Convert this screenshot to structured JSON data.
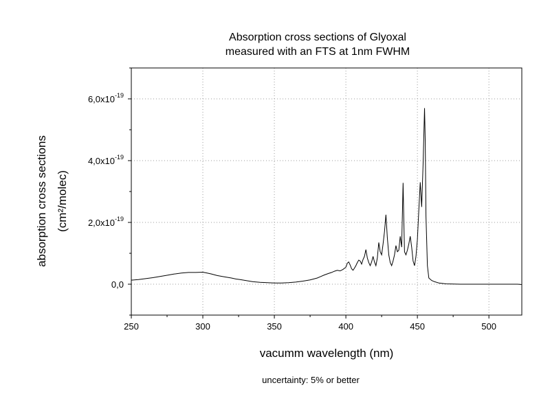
{
  "chart_data": {
    "type": "line",
    "title": "Absorption cross sections of Glyoxal",
    "subtitle": "measured with an FTS at 1nm FWHM",
    "xlabel": "vacumm wavelength (nm)",
    "ylabel": "absorption cross sections",
    "ylabel_unit": "(cm²/molec)",
    "note": "uncertainty: 5% or better",
    "xlim": [
      250,
      523
    ],
    "ylim": [
      -1e-19,
      7e-19
    ],
    "x_ticks": [
      250,
      300,
      350,
      400,
      450,
      500
    ],
    "x_tick_labels": [
      "250",
      "300",
      "350",
      "400",
      "450",
      "500"
    ],
    "y_ticks": [
      0,
      2e-19,
      4e-19,
      6e-19
    ],
    "y_tick_labels": [
      {
        "mantissa": "0,0",
        "exp": ""
      },
      {
        "mantissa": "2,0x10",
        "exp": "-19"
      },
      {
        "mantissa": "4,0x10",
        "exp": "-19"
      },
      {
        "mantissa": "6,0x10",
        "exp": "-19"
      }
    ],
    "grid": true,
    "line_color": "#000000",
    "grid_color": "#9a9a9a",
    "series": [
      {
        "x": [
          250,
          255,
          260,
          265,
          270,
          275,
          280,
          285,
          290,
          295,
          300,
          303,
          306,
          310,
          315,
          320,
          323,
          326,
          330,
          335,
          340,
          345,
          350,
          355,
          360,
          365,
          370,
          375,
          380,
          382,
          385,
          388,
          390,
          392,
          394,
          396,
          398,
          400,
          401,
          402,
          403,
          404,
          405,
          406,
          407,
          408,
          409,
          410,
          411,
          412,
          413,
          414,
          415,
          416,
          417,
          418,
          419,
          420,
          421,
          422,
          423,
          424,
          425,
          426,
          427,
          428,
          429,
          430,
          431,
          432,
          433,
          434,
          435,
          436,
          437,
          438,
          439,
          440,
          440.5,
          441,
          442,
          443,
          444,
          445,
          446,
          447,
          448,
          449,
          450,
          451,
          452,
          453,
          454,
          455,
          455.5,
          456,
          457,
          458,
          460,
          462,
          465,
          470,
          480,
          490,
          500,
          510,
          520,
          523
        ],
        "y": [
          1.3e-20,
          1.5e-20,
          1.8e-20,
          2.1e-20,
          2.5e-20,
          2.9e-20,
          3.3e-20,
          3.6e-20,
          3.8e-20,
          3.8e-20,
          3.9e-20,
          3.6e-20,
          3.3e-20,
          2.8e-20,
          2.4e-20,
          2e-20,
          1.7e-20,
          1.5e-20,
          1.2e-20,
          8e-21,
          6e-21,
          5e-21,
          4e-21,
          4e-21,
          5e-21,
          7e-21,
          1e-20,
          1.4e-20,
          2e-20,
          2.4e-20,
          3e-20,
          3.5e-20,
          3.8e-20,
          4.2e-20,
          4.5e-20,
          4.3e-20,
          4.8e-20,
          5.5e-20,
          6.8e-20,
          7.2e-20,
          6.2e-20,
          5e-20,
          4.5e-20,
          5.2e-20,
          6e-20,
          7e-20,
          7.8e-20,
          7.5e-20,
          6.5e-20,
          8e-20,
          9e-20,
          1.12e-19,
          8.5e-20,
          7e-20,
          6e-20,
          7.2e-20,
          9e-20,
          7.2e-20,
          6e-20,
          8.5e-20,
          1.35e-19,
          1.05e-19,
          9.5e-20,
          1.3e-19,
          1.7e-19,
          2.25e-19,
          1.5e-19,
          9.5e-20,
          7e-20,
          6e-20,
          7.5e-20,
          9.5e-20,
          1.25e-19,
          1.05e-19,
          1.1e-19,
          1.55e-19,
          1.2e-19,
          3.28e-19,
          2.1e-19,
          1.05e-19,
          9.5e-20,
          1.1e-19,
          1.3e-19,
          1.55e-19,
          1.2e-19,
          7.5e-20,
          6e-20,
          9e-20,
          1.45e-19,
          2.4e-19,
          3.3e-19,
          2.5e-19,
          3.9e-19,
          5.7e-19,
          4.6e-19,
          2.2e-19,
          6e-20,
          2e-20,
          1.2e-20,
          8e-21,
          4e-21,
          1e-21,
          0.0,
          0.0,
          0.0,
          0.0,
          0.0,
          -1e-21
        ]
      }
    ]
  }
}
